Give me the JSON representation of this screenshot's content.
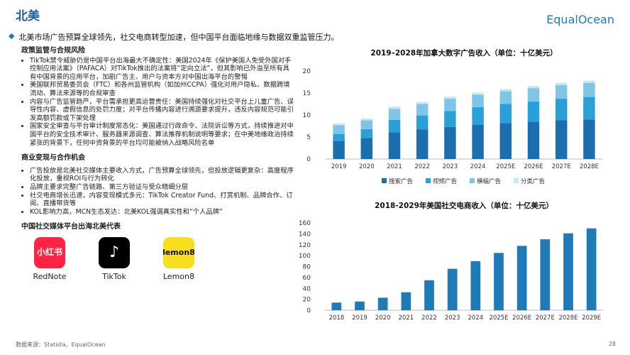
{
  "header": {
    "title": "北美",
    "logo": "EqualOcean",
    "subtitle": "北美市场广告预算全球领先，社交电商转型加速，但中国平台面临地缘与数据双重监管压力。"
  },
  "sections": [
    {
      "title": "政策监管与合规风险",
      "bullets": [
        "TikTok禁令威胁仍是中国平台出海最大不确定性：美国2024年《保护美国人免受外国对手控制应用法案》（PAFACA）对TikTok推出的法案将“定向立法”，但其影响已外溢至所有具有中国背景的应用平台，加剧广告主、用户与资本方对中国出海平台的警惕",
        "美国联邦贸易委员会（FTC）和各州监管机构（如加州CCPA）强化对用户隐私、数据跨境流动、算法来源等的合规审查",
        "内容与广告监管趋严，平台需承担更高运营责任：美国持续强化对社交平台上儿童广告、误导性内容、虚假信息的处罚力度；对平台传播内容进行溯源要求提升，违反内容规范可能引发高额罚款或下架处理",
        "国家安全审查与平台审计制度常态化：美国通过行政命令、法院诉讼等方式，持续推进对中国平台的安全技术审计、服务器来源调查、算法推荐机制说明等要求；在中美地缘政治持续紧张的背景下，任何中资背景的平台均可能被纳入战略风险名单"
      ]
    },
    {
      "title": "商业变现与合作机会",
      "bullets": [
        "广告投放是北美社交媒体主要收入方式，广告预算全球领先，但投放逻辑更复杂：高度程序化投放，重视ROI与行为转化",
        "品牌主要求完整广告链路、第三方验证与受众精细分层",
        "社交电商增长迅速，内容变现模式多元：TikTok Creator Fund、打赏机制、品牌合作、订阅、直播带货等",
        "KOL影响力高，MCN生态发达：北美KOL强调真实性和“个人品牌”"
      ]
    },
    {
      "title": "中国社交媒体平台出海北美代表",
      "platforms": [
        {
          "logo": "小红书",
          "name": "RedNote"
        },
        {
          "logo": "♪",
          "name": "TikTok"
        },
        {
          "logo": "lemon8",
          "name": "Lemon8"
        }
      ]
    }
  ],
  "chart_data": [
    {
      "type": "bar",
      "stacked": true,
      "title": "2019–2028年加拿大数字广告收入（单位：十亿美元）",
      "categories": [
        "2019",
        "2020",
        "2021",
        "2022",
        "2023",
        "2024",
        "2025E",
        "2026E",
        "2027E",
        "2028E"
      ],
      "series": [
        {
          "name": "搜索广告",
          "color": "#1b6fae",
          "values": [
            4.1,
            4.8,
            6.1,
            6.7,
            7.3,
            7.8,
            8.2,
            8.5,
            8.8,
            9.0
          ]
        },
        {
          "name": "视频广告",
          "color": "#2aa0d8",
          "values": [
            1.6,
            2.0,
            2.8,
            3.2,
            3.6,
            4.0,
            4.3,
            4.6,
            4.9,
            5.1
          ]
        },
        {
          "name": "横幅广告",
          "color": "#7fc6e6",
          "values": [
            2.0,
            2.0,
            2.5,
            2.6,
            2.8,
            2.8,
            2.9,
            3.0,
            3.1,
            3.2
          ]
        },
        {
          "name": "分类广告",
          "color": "#c8e6f4",
          "values": [
            0.4,
            0.4,
            0.5,
            0.5,
            0.5,
            0.5,
            0.5,
            0.5,
            0.5,
            0.5
          ]
        }
      ],
      "ylim": [
        0,
        20
      ],
      "yticks": [
        0,
        5,
        10,
        15,
        20
      ]
    },
    {
      "type": "bar",
      "title": "2018-2029年美国社交电商收入（单位：十亿美元）",
      "categories": [
        "2018",
        "2019",
        "2020",
        "2021",
        "2022",
        "2023",
        "2024",
        "2025E",
        "2026E",
        "2027E",
        "2028E",
        "2029E"
      ],
      "values": [
        14,
        16,
        23,
        33,
        55,
        76,
        90,
        105,
        118,
        130,
        141,
        150
      ],
      "color": "#1f7ab8",
      "ylim": [
        0,
        160
      ],
      "yticks": [
        0,
        20,
        40,
        60,
        80,
        100,
        120,
        140,
        160
      ]
    }
  ],
  "footer": {
    "source": "数据来源：Statista，EqualOcean",
    "page": "28"
  }
}
